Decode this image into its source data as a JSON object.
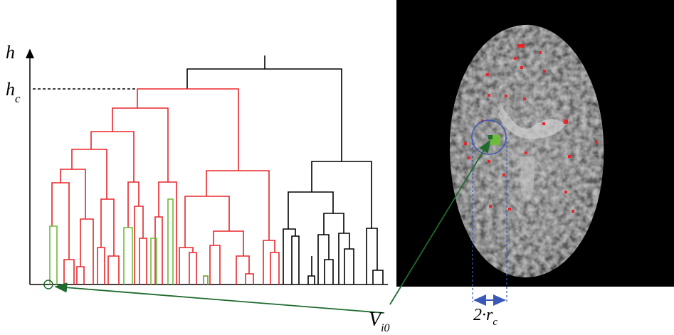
{
  "axis_label": "h",
  "threshold_label": {
    "base": "h",
    "sub": "c"
  },
  "voxel_label": {
    "base": "V",
    "sub": "i0"
  },
  "radius_label": {
    "base": "2·r",
    "sub": "c"
  }
}
